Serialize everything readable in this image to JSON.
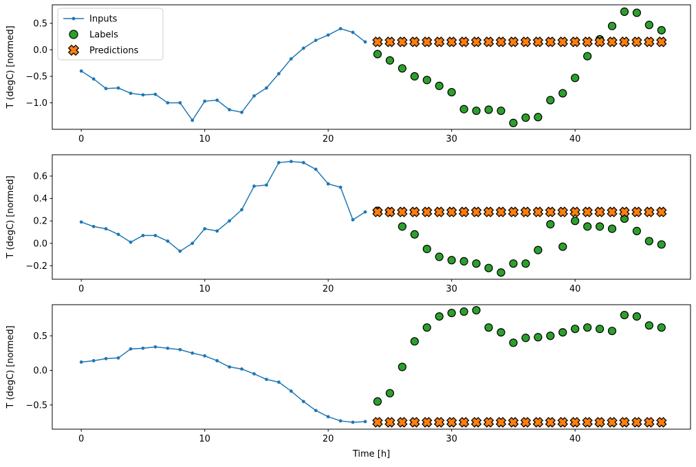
{
  "figure": {
    "xlabel": "Time [h]",
    "ylabel": "T (degC) [normed]",
    "colors": {
      "inputs": "#1f77b4",
      "labels": "#2ca02c",
      "predictions": "#ff7f0e",
      "marker_edge": "#000000",
      "axes_edge": "#000000",
      "legend_edge": "#cccccc"
    },
    "legend": {
      "position": "upper-left",
      "entries": [
        "Inputs",
        "Labels",
        "Predictions"
      ]
    }
  },
  "chart_data": [
    {
      "type": "line",
      "title": "",
      "ylabel": "T (degC) [normed]",
      "xlim": [
        -2.35,
        49.35
      ],
      "ylim": [
        -1.5,
        0.85
      ],
      "grid": false,
      "xticks": [
        0,
        10,
        20,
        30,
        40
      ],
      "xtick_labels": [
        "0",
        "10",
        "20",
        "30",
        "40"
      ],
      "yticks": [
        0.5,
        0.0,
        -0.5,
        -1.0
      ],
      "ytick_labels": [
        "0.5",
        "0.0",
        "−0.5",
        "−1.0"
      ],
      "series": [
        {
          "name": "Inputs",
          "marker": "dot",
          "color": "#1f77b4",
          "x": [
            0,
            1,
            2,
            3,
            4,
            5,
            6,
            7,
            8,
            9,
            10,
            11,
            12,
            13,
            14,
            15,
            16,
            17,
            18,
            19,
            20,
            21,
            22,
            23
          ],
          "y": [
            -0.4,
            -0.55,
            -0.73,
            -0.72,
            -0.82,
            -0.85,
            -0.84,
            -1.0,
            -1.0,
            -1.33,
            -0.97,
            -0.95,
            -1.13,
            -1.18,
            -0.87,
            -0.72,
            -0.45,
            -0.17,
            0.03,
            0.18,
            0.28,
            0.4,
            0.33,
            0.15
          ]
        },
        {
          "name": "Labels",
          "marker": "circle",
          "color": "#2ca02c",
          "x": [
            24,
            25,
            26,
            27,
            28,
            29,
            30,
            31,
            32,
            33,
            34,
            35,
            36,
            37,
            38,
            39,
            40,
            41,
            42,
            43,
            44,
            45,
            46,
            47
          ],
          "y": [
            -0.08,
            -0.2,
            -0.35,
            -0.5,
            -0.57,
            -0.68,
            -0.8,
            -1.12,
            -1.15,
            -1.13,
            -1.15,
            -1.38,
            -1.28,
            -1.27,
            -0.95,
            -0.82,
            -0.53,
            -0.12,
            0.2,
            0.45,
            0.72,
            0.7,
            0.47,
            0.37
          ]
        },
        {
          "name": "Predictions",
          "marker": "X",
          "color": "#ff7f0e",
          "x": [
            24,
            25,
            26,
            27,
            28,
            29,
            30,
            31,
            32,
            33,
            34,
            35,
            36,
            37,
            38,
            39,
            40,
            41,
            42,
            43,
            44,
            45,
            46,
            47
          ],
          "y": [
            0.15,
            0.15,
            0.15,
            0.15,
            0.15,
            0.15,
            0.15,
            0.15,
            0.15,
            0.15,
            0.15,
            0.15,
            0.15,
            0.15,
            0.15,
            0.15,
            0.15,
            0.15,
            0.15,
            0.15,
            0.15,
            0.15,
            0.15,
            0.15
          ]
        }
      ]
    },
    {
      "type": "line",
      "title": "",
      "ylabel": "T (degC) [normed]",
      "xlim": [
        -2.35,
        49.35
      ],
      "ylim": [
        -0.32,
        0.79
      ],
      "grid": false,
      "xticks": [
        0,
        10,
        20,
        30,
        40
      ],
      "xtick_labels": [
        "0",
        "10",
        "20",
        "30",
        "40"
      ],
      "yticks": [
        0.6,
        0.4,
        0.2,
        0.0,
        -0.2
      ],
      "ytick_labels": [
        "0.6",
        "0.4",
        "0.2",
        "0.0",
        "−0.2"
      ],
      "series": [
        {
          "name": "Inputs",
          "marker": "dot",
          "color": "#1f77b4",
          "x": [
            0,
            1,
            2,
            3,
            4,
            5,
            6,
            7,
            8,
            9,
            10,
            11,
            12,
            13,
            14,
            15,
            16,
            17,
            18,
            19,
            20,
            21,
            22,
            23
          ],
          "y": [
            0.19,
            0.15,
            0.13,
            0.08,
            0.01,
            0.07,
            0.07,
            0.02,
            -0.07,
            0.0,
            0.13,
            0.11,
            0.2,
            0.3,
            0.51,
            0.52,
            0.72,
            0.73,
            0.72,
            0.66,
            0.53,
            0.5,
            0.21,
            0.28
          ]
        },
        {
          "name": "Labels",
          "marker": "circle",
          "color": "#2ca02c",
          "x": [
            24,
            25,
            26,
            27,
            28,
            29,
            30,
            31,
            32,
            33,
            34,
            35,
            36,
            37,
            38,
            39,
            40,
            41,
            42,
            43,
            44,
            45,
            46,
            47
          ],
          "y": [
            0.29,
            0.28,
            0.15,
            0.08,
            -0.05,
            -0.12,
            -0.15,
            -0.16,
            -0.18,
            -0.22,
            -0.26,
            -0.18,
            -0.18,
            -0.06,
            0.17,
            -0.03,
            0.2,
            0.15,
            0.15,
            0.13,
            0.22,
            0.11,
            0.02,
            -0.01
          ]
        },
        {
          "name": "Predictions",
          "marker": "X",
          "color": "#ff7f0e",
          "x": [
            24,
            25,
            26,
            27,
            28,
            29,
            30,
            31,
            32,
            33,
            34,
            35,
            36,
            37,
            38,
            39,
            40,
            41,
            42,
            43,
            44,
            45,
            46,
            47
          ],
          "y": [
            0.28,
            0.28,
            0.28,
            0.28,
            0.28,
            0.28,
            0.28,
            0.28,
            0.28,
            0.28,
            0.28,
            0.28,
            0.28,
            0.28,
            0.28,
            0.28,
            0.28,
            0.28,
            0.28,
            0.28,
            0.28,
            0.28,
            0.28,
            0.28
          ]
        }
      ]
    },
    {
      "type": "line",
      "title": "",
      "ylabel": "T (degC) [normed]",
      "xlabel": "Time [h]",
      "xlim": [
        -2.35,
        49.35
      ],
      "ylim": [
        -0.85,
        0.95
      ],
      "grid": false,
      "xticks": [
        0,
        10,
        20,
        30,
        40
      ],
      "xtick_labels": [
        "0",
        "10",
        "20",
        "30",
        "40"
      ],
      "yticks": [
        0.5,
        0.0,
        -0.5
      ],
      "ytick_labels": [
        "0.5",
        "0.0",
        "−0.5"
      ],
      "series": [
        {
          "name": "Inputs",
          "marker": "dot",
          "color": "#1f77b4",
          "x": [
            0,
            1,
            2,
            3,
            4,
            5,
            6,
            7,
            8,
            9,
            10,
            11,
            12,
            13,
            14,
            15,
            16,
            17,
            18,
            19,
            20,
            21,
            22,
            23
          ],
          "y": [
            0.12,
            0.14,
            0.17,
            0.18,
            0.31,
            0.32,
            0.34,
            0.32,
            0.3,
            0.25,
            0.21,
            0.14,
            0.05,
            0.02,
            -0.05,
            -0.13,
            -0.17,
            -0.3,
            -0.45,
            -0.58,
            -0.67,
            -0.73,
            -0.75,
            -0.74
          ]
        },
        {
          "name": "Labels",
          "marker": "circle",
          "color": "#2ca02c",
          "x": [
            24,
            25,
            26,
            27,
            28,
            29,
            30,
            31,
            32,
            33,
            34,
            35,
            36,
            37,
            38,
            39,
            40,
            41,
            42,
            43,
            44,
            45,
            46,
            47
          ],
          "y": [
            -0.45,
            -0.33,
            0.05,
            0.42,
            0.62,
            0.78,
            0.83,
            0.85,
            0.87,
            0.62,
            0.55,
            0.4,
            0.47,
            0.48,
            0.5,
            0.55,
            0.6,
            0.62,
            0.6,
            0.57,
            0.8,
            0.78,
            0.65,
            0.62
          ]
        },
        {
          "name": "Predictions",
          "marker": "X",
          "color": "#ff7f0e",
          "x": [
            24,
            25,
            26,
            27,
            28,
            29,
            30,
            31,
            32,
            33,
            34,
            35,
            36,
            37,
            38,
            39,
            40,
            41,
            42,
            43,
            44,
            45,
            46,
            47
          ],
          "y": [
            -0.75,
            -0.75,
            -0.75,
            -0.75,
            -0.75,
            -0.75,
            -0.75,
            -0.75,
            -0.75,
            -0.75,
            -0.75,
            -0.75,
            -0.75,
            -0.75,
            -0.75,
            -0.75,
            -0.75,
            -0.75,
            -0.75,
            -0.75,
            -0.75,
            -0.75,
            -0.75,
            -0.75
          ]
        }
      ]
    }
  ]
}
